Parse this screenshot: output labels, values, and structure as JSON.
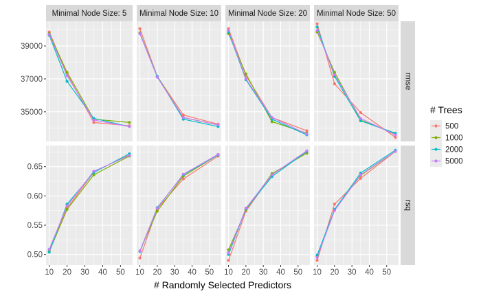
{
  "chart_data": {
    "type": "line",
    "xlabel": "# Randomly Selected Predictors",
    "facet_col_labels": [
      "Minimal Node Size: 5",
      "Minimal Node Size: 10",
      "Minimal Node Size: 20",
      "Minimal Node Size: 50"
    ],
    "facet_row_labels": [
      "rmse",
      "rsq"
    ],
    "x": [
      10,
      20,
      35,
      55
    ],
    "x_ticks": [
      10,
      20,
      30,
      40,
      50
    ],
    "xlim": [
      8.2,
      56.8
    ],
    "legend": {
      "title": "# Trees",
      "position": "right",
      "entries": [
        " 500",
        "1000",
        "2000",
        "5000"
      ],
      "colors": [
        "#F8766D",
        "#7CAE00",
        "#00BFC4",
        "#C77CFF"
      ]
    },
    "rows": [
      {
        "metric": "rmse",
        "ylim": [
          33200,
          40500
        ],
        "y_ticks": [
          35000,
          37000,
          39000
        ],
        "panels": [
          {
            "series": [
              {
                "name": " 500",
                "values": [
                  39850,
                  37300,
                  34350,
                  34150
                ]
              },
              {
                "name": "1000",
                "values": [
                  39750,
                  37400,
                  34550,
                  34350
                ]
              },
              {
                "name": "2000",
                "values": [
                  39650,
                  36850,
                  34600,
                  34100
                ]
              },
              {
                "name": "5000",
                "values": [
                  39700,
                  37200,
                  34500,
                  34100
                ]
              }
            ]
          },
          {
            "series": [
              {
                "name": " 500",
                "values": [
                  40050,
                  37150,
                  34800,
                  34250
                ]
              },
              {
                "name": "1000",
                "values": [
                  39800,
                  37150,
                  34650,
                  34200
                ]
              },
              {
                "name": "2000",
                "values": [
                  39750,
                  37150,
                  34550,
                  34100
                ]
              },
              {
                "name": "5000",
                "values": [
                  39750,
                  37100,
                  34650,
                  34200
                ]
              }
            ]
          },
          {
            "series": [
              {
                "name": " 500",
                "values": [
                  40050,
                  37200,
                  34650,
                  33850
                ]
              },
              {
                "name": "1000",
                "values": [
                  39750,
                  37300,
                  34400,
                  33700
                ]
              },
              {
                "name": "2000",
                "values": [
                  39850,
                  36950,
                  34550,
                  33600
                ]
              },
              {
                "name": "5000",
                "values": [
                  39950,
                  37000,
                  34650,
                  33650
                ]
              }
            ]
          },
          {
            "series": [
              {
                "name": " 500",
                "values": [
                  40350,
                  36700,
                  34950,
                  33450
                ]
              },
              {
                "name": "1000",
                "values": [
                  39850,
                  37400,
                  34500,
                  33650
                ]
              },
              {
                "name": "2000",
                "values": [
                  40150,
                  37150,
                  34450,
                  33700
                ]
              },
              {
                "name": "5000",
                "values": [
                  39950,
                  37250,
                  34600,
                  33600
                ]
              }
            ]
          }
        ]
      },
      {
        "metric": "rsq",
        "ylim": [
          0.482,
          0.686
        ],
        "y_ticks": [
          0.5,
          0.55,
          0.6,
          0.65
        ],
        "panels": [
          {
            "series": [
              {
                "name": " 500",
                "values": [
                  0.507,
                  0.579,
                  0.641,
                  0.67
                ]
              },
              {
                "name": "1000",
                "values": [
                  0.505,
                  0.577,
                  0.636,
                  0.668
                ]
              },
              {
                "name": "2000",
                "values": [
                  0.504,
                  0.586,
                  0.64,
                  0.672
                ]
              },
              {
                "name": "5000",
                "values": [
                  0.509,
                  0.583,
                  0.642,
                  0.669
                ]
              }
            ]
          },
          {
            "series": [
              {
                "name": " 500",
                "values": [
                  0.494,
                  0.578,
                  0.629,
                  0.668
                ]
              },
              {
                "name": "1000",
                "values": [
                  0.506,
                  0.574,
                  0.634,
                  0.67
                ]
              },
              {
                "name": "2000",
                "values": [
                  0.505,
                  0.58,
                  0.636,
                  0.67
                ]
              },
              {
                "name": "5000",
                "values": [
                  0.506,
                  0.579,
                  0.637,
                  0.671
                ]
              }
            ]
          },
          {
            "series": [
              {
                "name": " 500",
                "values": [
                  0.49,
                  0.574,
                  0.636,
                  0.675
                ]
              },
              {
                "name": "1000",
                "values": [
                  0.508,
                  0.576,
                  0.638,
                  0.673
                ]
              },
              {
                "name": "2000",
                "values": [
                  0.5,
                  0.578,
                  0.633,
                  0.676
                ]
              },
              {
                "name": "5000",
                "values": [
                  0.503,
                  0.579,
                  0.636,
                  0.677
                ]
              }
            ]
          },
          {
            "series": [
              {
                "name": " 500",
                "values": [
                  0.49,
                  0.586,
                  0.63,
                  0.676
                ]
              },
              {
                "name": "1000",
                "values": [
                  0.497,
                  0.576,
                  0.635,
                  0.676
                ]
              },
              {
                "name": "2000",
                "values": [
                  0.499,
                  0.577,
                  0.639,
                  0.678
                ]
              },
              {
                "name": "5000",
                "values": [
                  0.495,
                  0.575,
                  0.636,
                  0.676
                ]
              }
            ]
          }
        ]
      }
    ]
  }
}
